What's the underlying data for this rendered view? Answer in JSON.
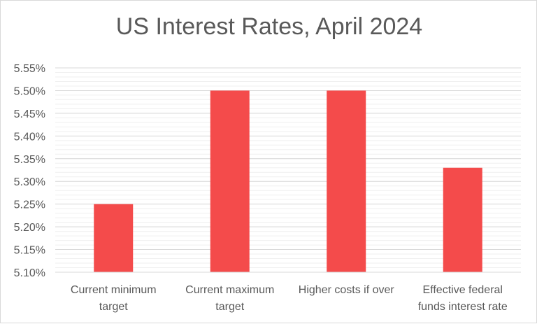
{
  "chart_data": {
    "type": "bar",
    "title": "US Interest Rates, April 2024",
    "categories": [
      [
        "Current minimum",
        "target"
      ],
      [
        "Current maximum",
        "target"
      ],
      [
        "Higher costs if over"
      ],
      [
        "Effective federal",
        "funds interest rate"
      ]
    ],
    "values": [
      5.25,
      5.5,
      5.5,
      5.33
    ],
    "value_unit": "%",
    "ylim": [
      5.1,
      5.55
    ],
    "yticks": [
      "5.10%",
      "5.15%",
      "5.20%",
      "5.25%",
      "5.30%",
      "5.35%",
      "5.40%",
      "5.45%",
      "5.50%",
      "5.55%"
    ],
    "xlabel": "",
    "ylabel": "",
    "grid": true,
    "legend": "none",
    "bar_color": "#f44b4b"
  }
}
